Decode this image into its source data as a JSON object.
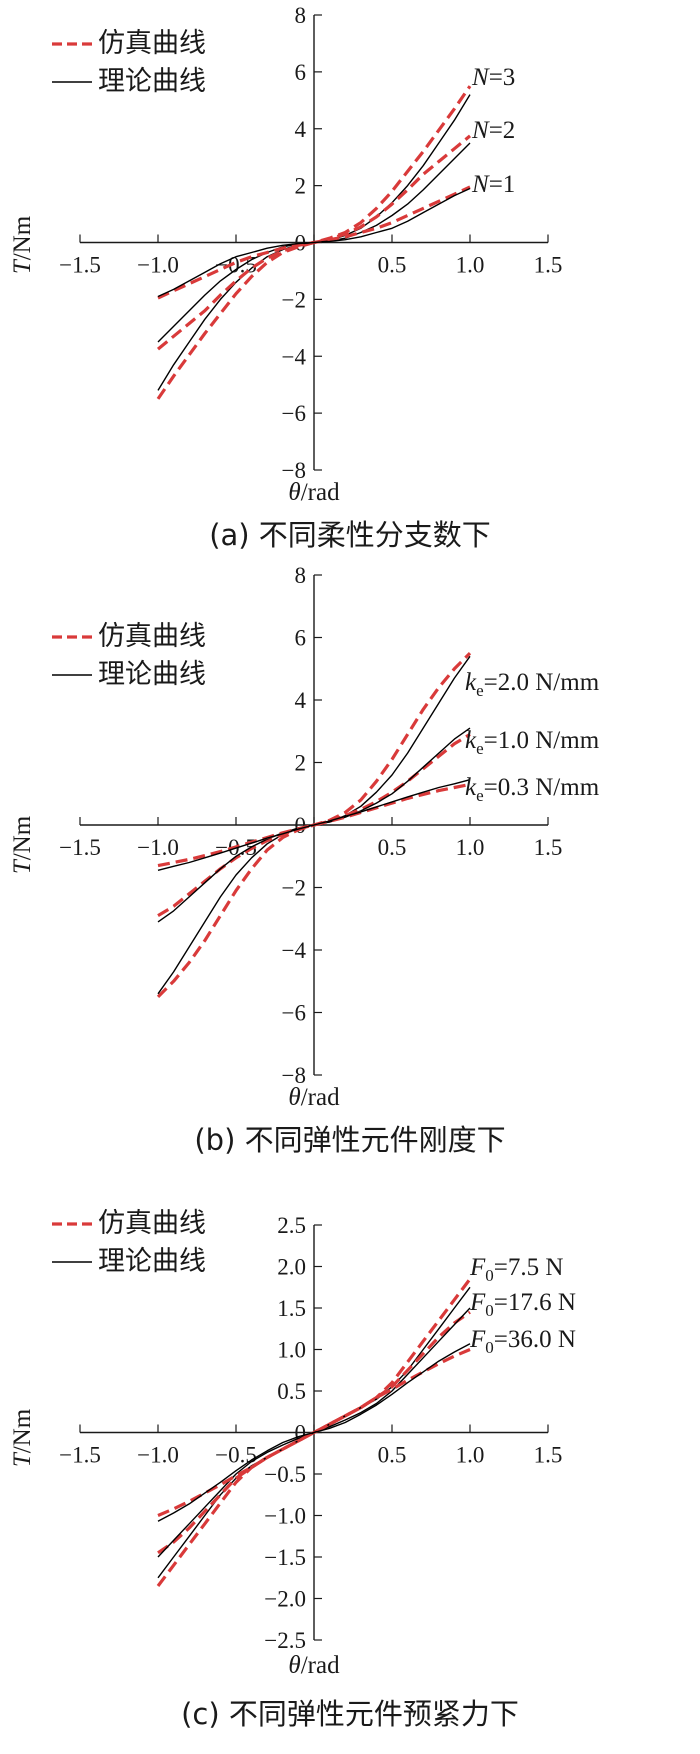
{
  "chart_data": [
    {
      "type": "line",
      "caption": "(a) 不同柔性分支数下",
      "xlabel": "θ/rad",
      "ylabel": "T/Nm",
      "xlim": [
        -1.5,
        1.5
      ],
      "ylim": [
        -8,
        8
      ],
      "xticks": [
        -1.5,
        -1.0,
        -0.5,
        0,
        0.5,
        1.0,
        1.5
      ],
      "xtick_labels": [
        "−1.5",
        "−1.0",
        "−0.5",
        "0",
        "0.5",
        "1.0",
        "1.5"
      ],
      "yticks": [
        -8,
        -6,
        -4,
        -2,
        0,
        2,
        4,
        6,
        8
      ],
      "ytick_labels": [
        "−8",
        "−6",
        "−4",
        "−2",
        "0",
        "2",
        "4",
        "6",
        "8"
      ],
      "legend": [
        {
          "label": "仿真曲线",
          "style": "dashed",
          "color": "#d93a3a"
        },
        {
          "label": "理论曲线",
          "style": "solid",
          "color": "#000000"
        }
      ],
      "curve_labels": [
        "N=3",
        "N=2",
        "N=1"
      ],
      "series": [
        {
          "label_ref": 0,
          "kind": "sim",
          "x": [
            0,
            0.1,
            0.2,
            0.3,
            0.4,
            0.5,
            0.6,
            0.7,
            0.8,
            0.9,
            1.0
          ],
          "y": [
            0,
            0.15,
            0.35,
            0.7,
            1.2,
            1.8,
            2.5,
            3.2,
            3.95,
            4.7,
            5.5
          ]
        },
        {
          "label_ref": 0,
          "kind": "theory",
          "x": [
            0,
            0.1,
            0.2,
            0.3,
            0.4,
            0.5,
            0.6,
            0.7,
            0.8,
            0.9,
            1.0
          ],
          "y": [
            0,
            0.08,
            0.25,
            0.5,
            0.9,
            1.4,
            2.0,
            2.7,
            3.5,
            4.3,
            5.2
          ]
        },
        {
          "label_ref": 1,
          "kind": "sim",
          "x": [
            0,
            0.1,
            0.2,
            0.3,
            0.4,
            0.5,
            0.6,
            0.7,
            0.8,
            0.9,
            1.0
          ],
          "y": [
            0,
            0.12,
            0.3,
            0.55,
            0.9,
            1.35,
            1.85,
            2.4,
            2.85,
            3.3,
            3.75
          ]
        },
        {
          "label_ref": 1,
          "kind": "theory",
          "x": [
            0,
            0.1,
            0.2,
            0.3,
            0.4,
            0.5,
            0.6,
            0.7,
            0.8,
            0.9,
            1.0
          ],
          "y": [
            0,
            0.05,
            0.15,
            0.35,
            0.6,
            0.95,
            1.35,
            1.85,
            2.4,
            2.95,
            3.5
          ]
        },
        {
          "label_ref": 2,
          "kind": "sim",
          "x": [
            0,
            0.1,
            0.2,
            0.3,
            0.4,
            0.5,
            0.6,
            0.7,
            0.8,
            0.9,
            1.0
          ],
          "y": [
            0,
            0.1,
            0.2,
            0.35,
            0.5,
            0.7,
            0.95,
            1.2,
            1.45,
            1.7,
            1.95
          ]
        },
        {
          "label_ref": 2,
          "kind": "theory",
          "x": [
            0,
            0.1,
            0.2,
            0.3,
            0.4,
            0.5,
            0.6,
            0.7,
            0.8,
            0.9,
            1.0
          ],
          "y": [
            0,
            0.04,
            0.1,
            0.2,
            0.35,
            0.5,
            0.75,
            1.05,
            1.35,
            1.65,
            1.9
          ]
        }
      ]
    },
    {
      "type": "line",
      "caption": "(b) 不同弹性元件刚度下",
      "xlabel": "θ/rad",
      "ylabel": "T/Nm",
      "xlim": [
        -1.5,
        1.5
      ],
      "ylim": [
        -8,
        8
      ],
      "xticks": [
        -1.5,
        -1.0,
        -0.5,
        0,
        0.5,
        1.0,
        1.5
      ],
      "xtick_labels": [
        "−1.5",
        "−1.0",
        "−0.5",
        "0",
        "0.5",
        "1.0",
        "1.5"
      ],
      "yticks": [
        -8,
        -6,
        -4,
        -2,
        0,
        2,
        4,
        6,
        8
      ],
      "ytick_labels": [
        "−8",
        "−6",
        "−4",
        "−2",
        "0",
        "2",
        "4",
        "6",
        "8"
      ],
      "legend": [
        {
          "label": "仿真曲线",
          "style": "dashed",
          "color": "#d93a3a"
        },
        {
          "label": "理论曲线",
          "style": "solid",
          "color": "#000000"
        }
      ],
      "curve_labels": [
        "ke=2.0 N/mm",
        "ke=1.0 N/mm",
        "ke=0.3 N/mm"
      ],
      "series": [
        {
          "label_ref": 0,
          "kind": "sim",
          "x": [
            0,
            0.1,
            0.2,
            0.3,
            0.4,
            0.5,
            0.6,
            0.7,
            0.8,
            0.9,
            1.0
          ],
          "y": [
            0,
            0.15,
            0.4,
            0.8,
            1.4,
            2.1,
            2.9,
            3.7,
            4.4,
            5.0,
            5.5
          ]
        },
        {
          "label_ref": 0,
          "kind": "theory",
          "x": [
            0,
            0.1,
            0.2,
            0.3,
            0.4,
            0.5,
            0.6,
            0.7,
            0.8,
            0.9,
            1.0
          ],
          "y": [
            0,
            0.1,
            0.3,
            0.6,
            1.05,
            1.6,
            2.3,
            3.1,
            3.9,
            4.7,
            5.4
          ]
        },
        {
          "label_ref": 1,
          "kind": "sim",
          "x": [
            0,
            0.1,
            0.2,
            0.3,
            0.4,
            0.5,
            0.6,
            0.7,
            0.8,
            0.9,
            1.0
          ],
          "y": [
            0,
            0.12,
            0.3,
            0.5,
            0.75,
            1.05,
            1.4,
            1.8,
            2.2,
            2.6,
            2.9
          ]
        },
        {
          "label_ref": 1,
          "kind": "theory",
          "x": [
            0,
            0.1,
            0.2,
            0.3,
            0.4,
            0.5,
            0.6,
            0.7,
            0.8,
            0.9,
            1.0
          ],
          "y": [
            0,
            0.1,
            0.25,
            0.45,
            0.7,
            1.0,
            1.4,
            1.85,
            2.3,
            2.75,
            3.1
          ]
        },
        {
          "label_ref": 2,
          "kind": "sim",
          "x": [
            0,
            0.1,
            0.2,
            0.3,
            0.4,
            0.5,
            0.6,
            0.7,
            0.8,
            0.9,
            1.0
          ],
          "y": [
            0,
            0.12,
            0.25,
            0.4,
            0.55,
            0.7,
            0.85,
            0.98,
            1.1,
            1.2,
            1.3
          ]
        },
        {
          "label_ref": 2,
          "kind": "theory",
          "x": [
            0,
            0.1,
            0.2,
            0.3,
            0.4,
            0.5,
            0.6,
            0.7,
            0.8,
            0.9,
            1.0
          ],
          "y": [
            0,
            0.13,
            0.28,
            0.42,
            0.58,
            0.74,
            0.9,
            1.05,
            1.2,
            1.32,
            1.45
          ]
        }
      ]
    },
    {
      "type": "line",
      "caption": "(c) 不同弹性元件预紧力下",
      "xlabel": "θ/rad",
      "ylabel": "T/Nm",
      "xlim": [
        -1.5,
        1.5
      ],
      "ylim": [
        -2.5,
        2.5
      ],
      "xticks": [
        -1.5,
        -1.0,
        -0.5,
        0,
        0.5,
        1.0,
        1.5
      ],
      "xtick_labels": [
        "−1.5",
        "−1.0",
        "−0.5",
        "0",
        "0.5",
        "1.0",
        "1.5"
      ],
      "yticks": [
        -2.5,
        -2.0,
        -1.5,
        -1.0,
        -0.5,
        0,
        0.5,
        1.0,
        1.5,
        2.0,
        2.5
      ],
      "ytick_labels": [
        "−2.5",
        "−2.0",
        "−1.5",
        "−1.0",
        "−0.5",
        "0",
        "0.5",
        "1.0",
        "1.5",
        "2.0",
        "2.5"
      ],
      "legend": [
        {
          "label": "仿真曲线",
          "style": "dashed",
          "color": "#d93a3a"
        },
        {
          "label": "理论曲线",
          "style": "solid",
          "color": "#000000"
        }
      ],
      "curve_labels": [
        "F0=7.5 N",
        "F0=17.6 N",
        "F0=36.0 N"
      ],
      "series": [
        {
          "label_ref": 0,
          "kind": "sim",
          "x": [
            0,
            0.1,
            0.2,
            0.3,
            0.4,
            0.5,
            0.6,
            0.7,
            0.8,
            0.9,
            1.0
          ],
          "y": [
            0,
            0.1,
            0.2,
            0.3,
            0.42,
            0.6,
            0.85,
            1.1,
            1.35,
            1.6,
            1.85
          ]
        },
        {
          "label_ref": 0,
          "kind": "theory",
          "x": [
            0,
            0.1,
            0.2,
            0.3,
            0.4,
            0.5,
            0.6,
            0.7,
            0.8,
            0.9,
            1.0
          ],
          "y": [
            0,
            0.1,
            0.2,
            0.3,
            0.4,
            0.55,
            0.75,
            1.0,
            1.25,
            1.5,
            1.75
          ]
        },
        {
          "label_ref": 1,
          "kind": "sim",
          "x": [
            0,
            0.1,
            0.2,
            0.3,
            0.4,
            0.5,
            0.6,
            0.7,
            0.8,
            0.9,
            1.0
          ],
          "y": [
            0,
            0.1,
            0.2,
            0.3,
            0.42,
            0.55,
            0.75,
            0.95,
            1.15,
            1.32,
            1.45
          ]
        },
        {
          "label_ref": 1,
          "kind": "theory",
          "x": [
            0,
            0.1,
            0.2,
            0.3,
            0.4,
            0.5,
            0.6,
            0.7,
            0.8,
            0.9,
            1.0
          ],
          "y": [
            0,
            0.07,
            0.15,
            0.24,
            0.35,
            0.5,
            0.7,
            0.9,
            1.1,
            1.3,
            1.5
          ]
        },
        {
          "label_ref": 2,
          "kind": "sim",
          "x": [
            0,
            0.1,
            0.2,
            0.3,
            0.4,
            0.5,
            0.6,
            0.7,
            0.8,
            0.9,
            1.0
          ],
          "y": [
            0,
            0.1,
            0.2,
            0.3,
            0.42,
            0.52,
            0.63,
            0.73,
            0.83,
            0.92,
            1.0
          ]
        },
        {
          "label_ref": 2,
          "kind": "theory",
          "x": [
            0,
            0.1,
            0.2,
            0.3,
            0.4,
            0.5,
            0.6,
            0.7,
            0.8,
            0.9,
            1.0
          ],
          "y": [
            0,
            0.05,
            0.12,
            0.22,
            0.33,
            0.46,
            0.6,
            0.73,
            0.86,
            0.97,
            1.07
          ]
        }
      ]
    }
  ],
  "colors": {
    "sim": "#d93a3a",
    "theory": "#000000",
    "axis": "#1a1a1a"
  }
}
